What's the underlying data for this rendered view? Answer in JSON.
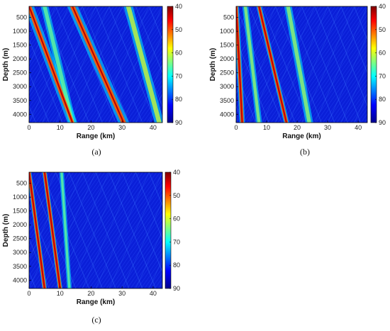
{
  "chart_data": [
    {
      "type": "heatmap",
      "caption": "(a)",
      "xlabel": "Range (km)",
      "ylabel": "Depth (m)",
      "xlim": [
        0,
        43
      ],
      "ylim": [
        100,
        4300
      ],
      "xticks": [
        0,
        10,
        20,
        30,
        40
      ],
      "yticks": [
        500,
        1000,
        1500,
        2000,
        2500,
        3000,
        3500,
        4000
      ],
      "colorbar": {
        "ticks": [
          40,
          50,
          60,
          70,
          80,
          90
        ],
        "range": [
          40,
          90
        ],
        "colormap": "jet-reversed"
      },
      "beams": [
        {
          "x": [
            0,
            14.0
          ],
          "width": 3.2,
          "level": 0.85
        },
        {
          "x": [
            14.0,
            30.5
          ],
          "width": 3.5,
          "level": 0.85
        },
        {
          "x": [
            32,
            42
          ],
          "width": 3.0,
          "level": 0.65
        },
        {
          "x": [
            5,
            14
          ],
          "width": 2.5,
          "level": 0.55
        }
      ],
      "red_lines": [
        {
          "x": [
            0,
            14.0
          ]
        },
        {
          "x": [
            14.0,
            30.5
          ]
        }
      ]
    },
    {
      "type": "heatmap",
      "caption": "(b)",
      "xlabel": "Range (km)",
      "ylabel": "Depth (m)",
      "xlim": [
        0,
        43
      ],
      "ylim": [
        100,
        4300
      ],
      "xticks": [
        0,
        10,
        20,
        30,
        40
      ],
      "yticks": [
        500,
        1000,
        1500,
        2000,
        2500,
        3000,
        3500,
        4000
      ],
      "colorbar": {
        "ticks": [
          40,
          50,
          60,
          70,
          80,
          90
        ],
        "range": [
          40,
          90
        ],
        "colormap": "jet-reversed"
      },
      "beams": [
        {
          "x": [
            0,
            2.0
          ],
          "width": 1.8,
          "level": 0.85
        },
        {
          "x": [
            7.5,
            16.5
          ],
          "width": 1.8,
          "level": 0.85
        },
        {
          "x": [
            17,
            24
          ],
          "width": 2.5,
          "level": 0.6
        },
        {
          "x": [
            3,
            7.5
          ],
          "width": 2.0,
          "level": 0.6
        }
      ],
      "red_lines": [
        {
          "x": [
            0,
            2.0
          ]
        },
        {
          "x": [
            7.5,
            16.5
          ]
        }
      ]
    },
    {
      "type": "heatmap",
      "caption": "(c)",
      "xlabel": "Range (km)",
      "ylabel": "Depth (m)",
      "xlim": [
        0,
        43
      ],
      "ylim": [
        100,
        4300
      ],
      "xticks": [
        0,
        10,
        20,
        30,
        40
      ],
      "yticks": [
        500,
        1000,
        1500,
        2000,
        2500,
        3000,
        3500,
        4000
      ],
      "colorbar": {
        "ticks": [
          40,
          50,
          60,
          70,
          80,
          90
        ],
        "range": [
          40,
          90
        ],
        "colormap": "jet-reversed"
      },
      "beams": [
        {
          "x": [
            0,
            5.0
          ],
          "width": 1.5,
          "level": 0.85
        },
        {
          "x": [
            5.0,
            10.0
          ],
          "width": 1.5,
          "level": 0.85
        },
        {
          "x": [
            10.5,
            13
          ],
          "width": 1.5,
          "level": 0.55
        }
      ],
      "red_lines": [
        {
          "x": [
            0,
            5.0
          ]
        },
        {
          "x": [
            5.0,
            10.0
          ]
        }
      ]
    }
  ]
}
